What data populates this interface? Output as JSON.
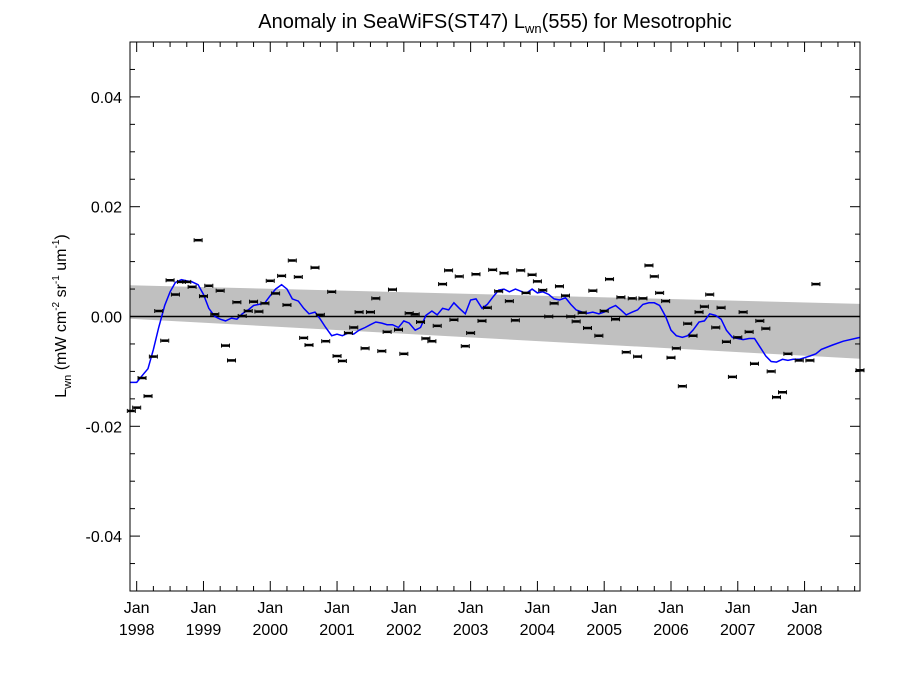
{
  "chart_data": {
    "type": "scatter",
    "title": "Anomaly in SeaWiFS(ST47) L",
    "title_sub": "wn",
    "title_end": "(555) for Mesotrophic",
    "ylabel_parts": [
      "L",
      "wn",
      " (mW cm",
      "-2",
      " sr",
      "-1",
      " um",
      "-1",
      ")"
    ],
    "ylim": [
      -0.05,
      0.05
    ],
    "xlim": [
      1997.9,
      2008.83
    ],
    "yticks": [
      -0.04,
      -0.02,
      0.0,
      0.02,
      0.04
    ],
    "ytick_labels": [
      "-0.04",
      "-0.02",
      "0.00",
      "0.02",
      "0.04"
    ],
    "xticks": [
      1998,
      1999,
      2000,
      2001,
      2002,
      2003,
      2004,
      2005,
      2006,
      2007,
      2008
    ],
    "xtick_month": "Jan",
    "xtick_years": [
      "1998",
      "1999",
      "2000",
      "2001",
      "2002",
      "2003",
      "2004",
      "2005",
      "2006",
      "2007",
      "2008"
    ],
    "zero_line": 0,
    "colors": {
      "smooth": "#0000ff",
      "band": "#c0c0c0",
      "points": "#000000",
      "zero": "#000000"
    },
    "confidence_band": {
      "x": [
        1997.9,
        2008.83
      ],
      "upper": [
        0.0057,
        0.0023
      ],
      "lower": [
        -0.0004,
        -0.0077
      ]
    },
    "points": [
      [
        1997.92,
        -0.0172
      ],
      [
        1998.0,
        -0.0166
      ],
      [
        1998.08,
        -0.0112
      ],
      [
        1998.17,
        -0.0145
      ],
      [
        1998.25,
        -0.0073
      ],
      [
        1998.33,
        0.001
      ],
      [
        1998.42,
        -0.0044
      ],
      [
        1998.5,
        0.0066
      ],
      [
        1998.58,
        0.004
      ],
      [
        1998.67,
        0.0063
      ],
      [
        1998.75,
        0.0063
      ],
      [
        1998.83,
        0.0054
      ],
      [
        1998.92,
        0.0139
      ],
      [
        1999.0,
        0.0037
      ],
      [
        1999.08,
        0.0056
      ],
      [
        1999.17,
        0.0004
      ],
      [
        1999.25,
        0.0047
      ],
      [
        1999.33,
        -0.0053
      ],
      [
        1999.42,
        -0.008
      ],
      [
        1999.5,
        0.0026
      ],
      [
        1999.58,
        0.0001
      ],
      [
        1999.67,
        0.001
      ],
      [
        1999.75,
        0.0027
      ],
      [
        1999.83,
        0.0009
      ],
      [
        1999.92,
        0.0024
      ],
      [
        2000.0,
        0.0065
      ],
      [
        2000.08,
        0.0042
      ],
      [
        2000.17,
        0.0074
      ],
      [
        2000.25,
        0.0021
      ],
      [
        2000.33,
        0.0102
      ],
      [
        2000.42,
        0.0072
      ],
      [
        2000.5,
        -0.0039
      ],
      [
        2000.58,
        -0.0052
      ],
      [
        2000.67,
        0.0089
      ],
      [
        2000.75,
        0.0003
      ],
      [
        2000.83,
        -0.0045
      ],
      [
        2000.92,
        0.0045
      ],
      [
        2001.0,
        -0.0072
      ],
      [
        2001.08,
        -0.0081
      ],
      [
        2001.17,
        -0.003
      ],
      [
        2001.25,
        -0.002
      ],
      [
        2001.33,
        0.0008
      ],
      [
        2001.42,
        -0.0058
      ],
      [
        2001.5,
        0.0008
      ],
      [
        2001.58,
        0.0033
      ],
      [
        2001.67,
        -0.0063
      ],
      [
        2001.75,
        -0.0028
      ],
      [
        2001.83,
        0.0049
      ],
      [
        2001.92,
        -0.0024
      ],
      [
        2002.0,
        -0.0068
      ],
      [
        2002.08,
        0.0006
      ],
      [
        2002.17,
        0.0004
      ],
      [
        2002.25,
        -0.001
      ],
      [
        2002.33,
        -0.004
      ],
      [
        2002.42,
        -0.0045
      ],
      [
        2002.5,
        -0.0017
      ],
      [
        2002.58,
        0.0059
      ],
      [
        2002.67,
        0.0084
      ],
      [
        2002.75,
        -0.0006
      ],
      [
        2002.83,
        0.0073
      ],
      [
        2002.92,
        -0.0054
      ],
      [
        2003.0,
        -0.003
      ],
      [
        2003.08,
        0.0077
      ],
      [
        2003.17,
        -0.0008
      ],
      [
        2003.25,
        0.0016
      ],
      [
        2003.33,
        0.0085
      ],
      [
        2003.42,
        0.0046
      ],
      [
        2003.5,
        0.0079
      ],
      [
        2003.58,
        0.0028
      ],
      [
        2003.67,
        -0.0007
      ],
      [
        2003.75,
        0.0084
      ],
      [
        2003.83,
        0.0043
      ],
      [
        2003.92,
        0.0076
      ],
      [
        2004.0,
        0.0064
      ],
      [
        2004.08,
        0.0048
      ],
      [
        2004.17,
        0.0
      ],
      [
        2004.25,
        0.0024
      ],
      [
        2004.33,
        0.0055
      ],
      [
        2004.42,
        0.0038
      ],
      [
        2004.5,
        0.0
      ],
      [
        2004.58,
        -0.0009
      ],
      [
        2004.67,
        0.0007
      ],
      [
        2004.75,
        -0.0021
      ],
      [
        2004.83,
        0.0047
      ],
      [
        2004.92,
        -0.0035
      ],
      [
        2005.0,
        0.001
      ],
      [
        2005.08,
        0.0068
      ],
      [
        2005.17,
        -0.0005
      ],
      [
        2005.25,
        0.0035
      ],
      [
        2005.33,
        -0.0065
      ],
      [
        2005.42,
        0.0033
      ],
      [
        2005.5,
        -0.0073
      ],
      [
        2005.58,
        0.0033
      ],
      [
        2005.67,
        0.0093
      ],
      [
        2005.75,
        0.0073
      ],
      [
        2005.83,
        0.0043
      ],
      [
        2005.92,
        0.0028
      ],
      [
        2006.0,
        -0.0075
      ],
      [
        2006.08,
        -0.0058
      ],
      [
        2006.17,
        -0.0127
      ],
      [
        2006.25,
        -0.0013
      ],
      [
        2006.33,
        -0.0035
      ],
      [
        2006.42,
        0.0008
      ],
      [
        2006.5,
        0.0018
      ],
      [
        2006.58,
        0.004
      ],
      [
        2006.67,
        -0.002
      ],
      [
        2006.75,
        0.0016
      ],
      [
        2006.83,
        -0.0046
      ],
      [
        2006.92,
        -0.011
      ],
      [
        2007.0,
        -0.0038
      ],
      [
        2007.08,
        0.0008
      ],
      [
        2007.17,
        -0.0028
      ],
      [
        2007.25,
        -0.0086
      ],
      [
        2007.33,
        -0.0008
      ],
      [
        2007.42,
        -0.0022
      ],
      [
        2007.5,
        -0.01
      ],
      [
        2007.58,
        -0.0147
      ],
      [
        2007.67,
        -0.0138
      ],
      [
        2007.75,
        -0.0068
      ],
      [
        2007.92,
        -0.008
      ],
      [
        2008.08,
        -0.008
      ],
      [
        2008.17,
        0.0059
      ],
      [
        2008.83,
        -0.0098
      ]
    ],
    "smooth": [
      [
        1997.9,
        -0.012
      ],
      [
        1998.0,
        -0.012
      ],
      [
        1998.08,
        -0.0108
      ],
      [
        1998.17,
        -0.0095
      ],
      [
        1998.25,
        -0.006
      ],
      [
        1998.33,
        -0.002
      ],
      [
        1998.42,
        0.002
      ],
      [
        1998.5,
        0.0045
      ],
      [
        1998.58,
        0.0062
      ],
      [
        1998.67,
        0.0067
      ],
      [
        1998.75,
        0.0065
      ],
      [
        1998.83,
        0.0063
      ],
      [
        1998.92,
        0.0058
      ],
      [
        1999.0,
        0.004
      ],
      [
        1999.08,
        0.0015
      ],
      [
        1999.17,
        0.0
      ],
      [
        1999.25,
        -0.0005
      ],
      [
        1999.33,
        -0.0008
      ],
      [
        1999.42,
        -0.0003
      ],
      [
        1999.5,
        -0.0005
      ],
      [
        1999.58,
        0.0005
      ],
      [
        1999.67,
        0.0012
      ],
      [
        1999.75,
        0.002
      ],
      [
        1999.83,
        0.0022
      ],
      [
        1999.92,
        0.0025
      ],
      [
        2000.0,
        0.0038
      ],
      [
        2000.08,
        0.005
      ],
      [
        2000.17,
        0.0058
      ],
      [
        2000.25,
        0.005
      ],
      [
        2000.33,
        0.0032
      ],
      [
        2000.42,
        0.0028
      ],
      [
        2000.5,
        0.0015
      ],
      [
        2000.58,
        0.0005
      ],
      [
        2000.67,
        0.0008
      ],
      [
        2000.75,
        -0.0005
      ],
      [
        2000.83,
        -0.002
      ],
      [
        2000.92,
        -0.0035
      ],
      [
        2001.0,
        -0.0032
      ],
      [
        2001.08,
        -0.0035
      ],
      [
        2001.17,
        -0.003
      ],
      [
        2001.25,
        -0.0032
      ],
      [
        2001.33,
        -0.0025
      ],
      [
        2001.42,
        -0.002
      ],
      [
        2001.5,
        -0.0015
      ],
      [
        2001.58,
        -0.001
      ],
      [
        2001.67,
        -0.0012
      ],
      [
        2001.75,
        -0.0015
      ],
      [
        2001.83,
        -0.0015
      ],
      [
        2001.92,
        -0.002
      ],
      [
        2002.0,
        -0.0008
      ],
      [
        2002.08,
        -0.0012
      ],
      [
        2002.17,
        -0.0025
      ],
      [
        2002.25,
        -0.002
      ],
      [
        2002.33,
        0.0002
      ],
      [
        2002.42,
        0.001
      ],
      [
        2002.5,
        0.0003
      ],
      [
        2002.58,
        0.0015
      ],
      [
        2002.67,
        0.0012
      ],
      [
        2002.75,
        0.0025
      ],
      [
        2002.83,
        0.0015
      ],
      [
        2002.92,
        0.0005
      ],
      [
        2003.0,
        0.003
      ],
      [
        2003.08,
        0.0032
      ],
      [
        2003.17,
        0.0015
      ],
      [
        2003.25,
        0.0022
      ],
      [
        2003.33,
        0.0035
      ],
      [
        2003.42,
        0.0048
      ],
      [
        2003.5,
        0.005
      ],
      [
        2003.58,
        0.0045
      ],
      [
        2003.67,
        0.005
      ],
      [
        2003.75,
        0.0046
      ],
      [
        2003.83,
        0.0042
      ],
      [
        2003.92,
        0.005
      ],
      [
        2004.0,
        0.0043
      ],
      [
        2004.08,
        0.0045
      ],
      [
        2004.17,
        0.004
      ],
      [
        2004.25,
        0.0032
      ],
      [
        2004.33,
        0.003
      ],
      [
        2004.42,
        0.0034
      ],
      [
        2004.5,
        0.0022
      ],
      [
        2004.58,
        0.0012
      ],
      [
        2004.67,
        0.0008
      ],
      [
        2004.75,
        0.0006
      ],
      [
        2004.83,
        0.0008
      ],
      [
        2004.92,
        0.0005
      ],
      [
        2005.0,
        0.0008
      ],
      [
        2005.08,
        0.0015
      ],
      [
        2005.17,
        0.002
      ],
      [
        2005.25,
        0.0012
      ],
      [
        2005.33,
        0.0003
      ],
      [
        2005.42,
        0.0008
      ],
      [
        2005.5,
        0.0012
      ],
      [
        2005.58,
        0.0022
      ],
      [
        2005.67,
        0.0025
      ],
      [
        2005.75,
        0.0025
      ],
      [
        2005.83,
        0.002
      ],
      [
        2005.92,
        0.0
      ],
      [
        2006.0,
        -0.0025
      ],
      [
        2006.08,
        -0.0035
      ],
      [
        2006.17,
        -0.0038
      ],
      [
        2006.25,
        -0.0035
      ],
      [
        2006.33,
        -0.0025
      ],
      [
        2006.42,
        -0.001
      ],
      [
        2006.5,
        -0.0008
      ],
      [
        2006.58,
        0.0005
      ],
      [
        2006.67,
        0.0002
      ],
      [
        2006.75,
        -0.0005
      ],
      [
        2006.83,
        -0.0025
      ],
      [
        2006.92,
        -0.0038
      ],
      [
        2007.0,
        -0.004
      ],
      [
        2007.08,
        -0.0042
      ],
      [
        2007.17,
        -0.004
      ],
      [
        2007.25,
        -0.004
      ],
      [
        2007.33,
        -0.0055
      ],
      [
        2007.42,
        -0.0072
      ],
      [
        2007.5,
        -0.0082
      ],
      [
        2007.58,
        -0.0083
      ],
      [
        2007.67,
        -0.0078
      ],
      [
        2007.75,
        -0.008
      ],
      [
        2007.83,
        -0.0078
      ],
      [
        2007.92,
        -0.0078
      ],
      [
        2008.0,
        -0.0075
      ],
      [
        2008.08,
        -0.0072
      ],
      [
        2008.17,
        -0.0068
      ],
      [
        2008.25,
        -0.006
      ],
      [
        2008.42,
        -0.0052
      ],
      [
        2008.58,
        -0.0045
      ],
      [
        2008.83,
        -0.0038
      ]
    ]
  }
}
